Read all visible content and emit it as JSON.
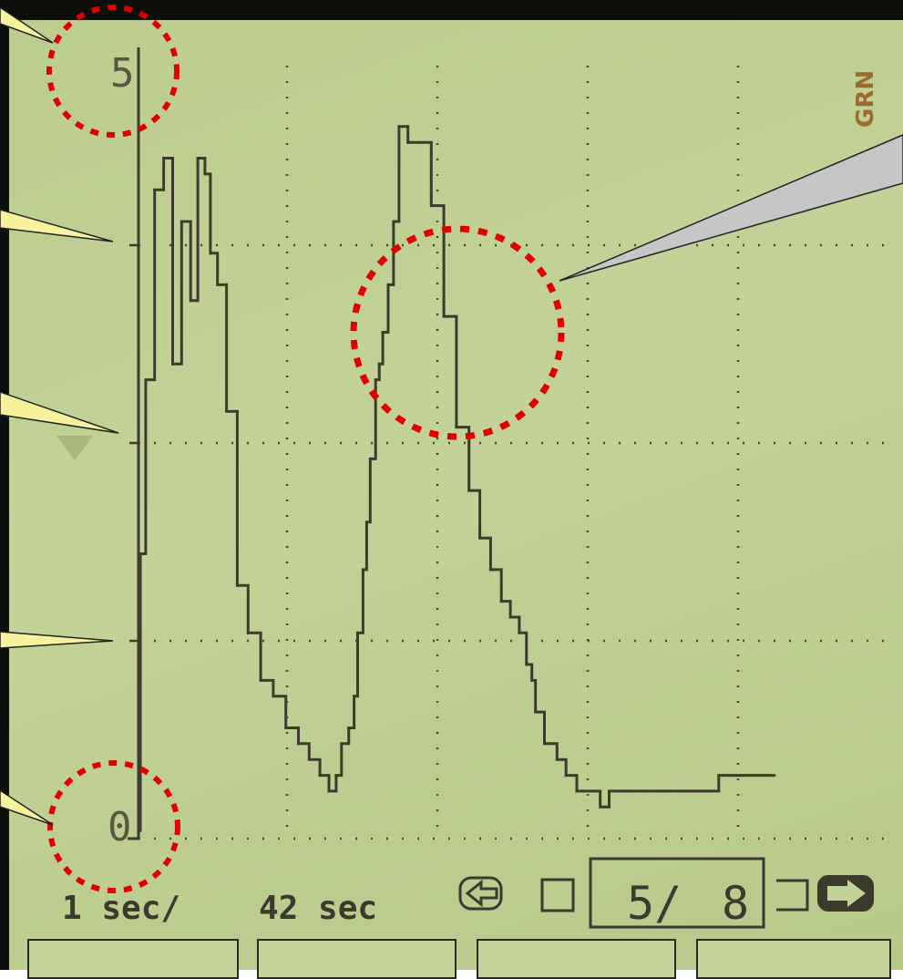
{
  "chart_data": {
    "type": "line",
    "title": "",
    "xlabel": "",
    "ylabel": "",
    "channel": "GRN",
    "y_ticks": [
      "5",
      "0"
    ],
    "ylim": [
      0,
      5
    ],
    "xlim": [
      0,
      42
    ],
    "sweep": {
      "per_division": "1 sec/",
      "total": "42 sec"
    },
    "page": {
      "current": "5/",
      "total": "8"
    },
    "series": [
      {
        "x": [
          0,
          0.1,
          0.4,
          0.9,
          1.4,
          1.9,
          2.4,
          2.9,
          3.3,
          3.7,
          4.0,
          4.4,
          4.9,
          5.5,
          6.1,
          6.8,
          7.5,
          8.2,
          8.9,
          9.5,
          10.1,
          10.6,
          11.0,
          11.3,
          11.7,
          12.0,
          12.2,
          12.5,
          12.7,
          12.9,
          13.2,
          13.4,
          13.6,
          13.9,
          14.2,
          14.5,
          15.0,
          15.6,
          16.3,
          17.0,
          17.7,
          18.4,
          19.0,
          19.6,
          20.2,
          20.7,
          21.2,
          21.6,
          21.9,
          22.1,
          22.4,
          22.6,
          22.9,
          23.1,
          23.3,
          23.6,
          23.8,
          24.1,
          24.4,
          24.8,
          25.2,
          25.7,
          26.2,
          26.8,
          27.5,
          28.2,
          28.9,
          29.5,
          30.1,
          30.6,
          31.1,
          31.5,
          31.9,
          32.3,
          32.7,
          33.1,
          33.5,
          33.9,
          34.3,
          34.7,
          35.1,
          35.4
        ],
        "y": [
          0.05,
          1.8,
          2.9,
          4.1,
          4.3,
          3.0,
          3.9,
          3.4,
          4.3,
          4.2,
          3.7,
          3.5,
          2.7,
          1.6,
          1.3,
          1.0,
          0.9,
          0.7,
          0.6,
          0.5,
          0.4,
          0.3,
          0.4,
          0.6,
          0.7,
          0.9,
          1.3,
          1.7,
          2.0,
          2.4,
          2.9,
          3.0,
          3.2,
          3.5,
          3.9,
          4.5,
          4.4,
          4.4,
          4.0,
          3.3,
          2.6,
          2.2,
          1.9,
          1.7,
          1.5,
          1.4,
          1.3,
          1.1,
          1.0,
          0.8,
          0.8,
          0.6,
          0.6,
          0.6,
          0.5,
          0.5,
          0.4,
          0.4,
          0.3,
          0.3,
          0.3,
          0.2,
          0.3,
          0.3,
          0.3,
          0.3,
          0.3,
          0.3,
          0.3,
          0.3,
          0.3,
          0.3,
          0.3,
          0.4,
          0.4,
          0.4,
          0.4,
          0.4,
          0.4,
          0.4,
          0.4,
          0.4
        ]
      }
    ]
  },
  "page_labels": {
    "scale_top": "5",
    "scale_bottom": "0",
    "channel_label": "GRN"
  },
  "annotations": {
    "highlight_top_label": "5",
    "highlight_bottom_label": "0",
    "highlight_peak": "peak"
  },
  "colors": {
    "trace": "#3e3b2b",
    "grid": "#4a4834",
    "lcd_bg": "#c0cf93",
    "callout_yellow": "#f7f29c",
    "callout_gray": "#c6c6c6",
    "highlight_red": "#e00000"
  }
}
